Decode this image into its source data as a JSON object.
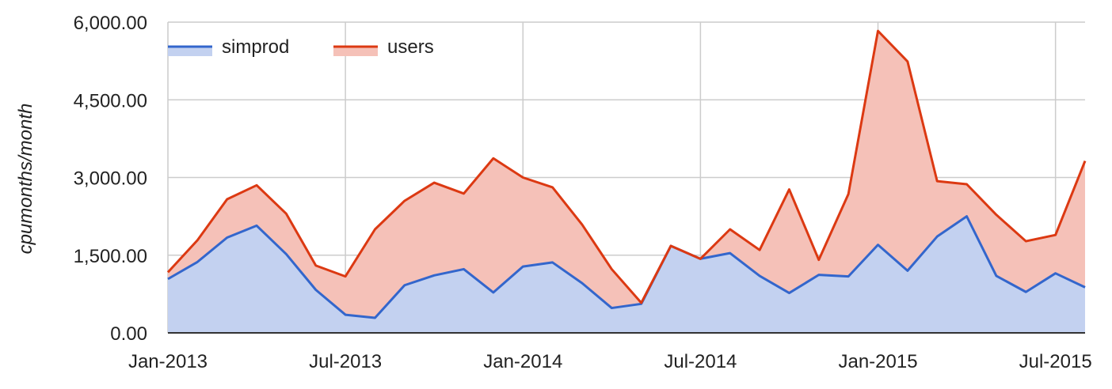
{
  "chart_data": {
    "type": "area",
    "stacked": true,
    "ylabel": "cpumonths/month",
    "xlabel": "",
    "ylim": [
      0,
      6000
    ],
    "yticks": [
      0,
      1500,
      3000,
      4500,
      6000
    ],
    "ytick_labels": [
      "0.00",
      "1,500.00",
      "3,000.00",
      "4,500.00",
      "6,000.00"
    ],
    "xticks": [
      {
        "index": 0,
        "label": "Jan-2013"
      },
      {
        "index": 6,
        "label": "Jul-2013"
      },
      {
        "index": 12,
        "label": "Jan-2014"
      },
      {
        "index": 18,
        "label": "Jul-2014"
      },
      {
        "index": 24,
        "label": "Jan-2015"
      },
      {
        "index": 30,
        "label": "Jul-2015"
      }
    ],
    "grid": true,
    "legend_position": "top-left",
    "categories": [
      "Jan-2013",
      "Feb-2013",
      "Mar-2013",
      "Apr-2013",
      "May-2013",
      "Jun-2013",
      "Jul-2013",
      "Aug-2013",
      "Sep-2013",
      "Oct-2013",
      "Nov-2013",
      "Dec-2013",
      "Jan-2014",
      "Feb-2014",
      "Mar-2014",
      "Apr-2014",
      "May-2014",
      "Jun-2014",
      "Jul-2014",
      "Aug-2014",
      "Sep-2014",
      "Oct-2014",
      "Nov-2014",
      "Dec-2014",
      "Jan-2015",
      "Feb-2015",
      "Mar-2015",
      "Apr-2015",
      "May-2015",
      "Jun-2015",
      "Jul-2015",
      "Aug-2015"
    ],
    "series": [
      {
        "name": "simprod",
        "color": "#3366cc",
        "fill": "#c3d1f0",
        "values": [
          1040,
          1370,
          1840,
          2070,
          1520,
          830,
          350,
          290,
          920,
          1110,
          1230,
          780,
          1280,
          1360,
          960,
          480,
          560,
          1680,
          1430,
          1540,
          1100,
          770,
          1120,
          1090,
          1700,
          1200,
          1860,
          2250,
          1100,
          790,
          1150,
          880
        ]
      },
      {
        "name": "users",
        "color": "#dc3912",
        "fill": "#f5c1b8",
        "values": [
          130,
          420,
          740,
          780,
          780,
          470,
          740,
          1710,
          1630,
          1790,
          1460,
          2590,
          1720,
          1450,
          1130,
          750,
          20,
          0,
          0,
          460,
          500,
          2000,
          290,
          1590,
          4130,
          4040,
          1070,
          620,
          1180,
          980,
          740,
          2440
        ]
      }
    ]
  }
}
